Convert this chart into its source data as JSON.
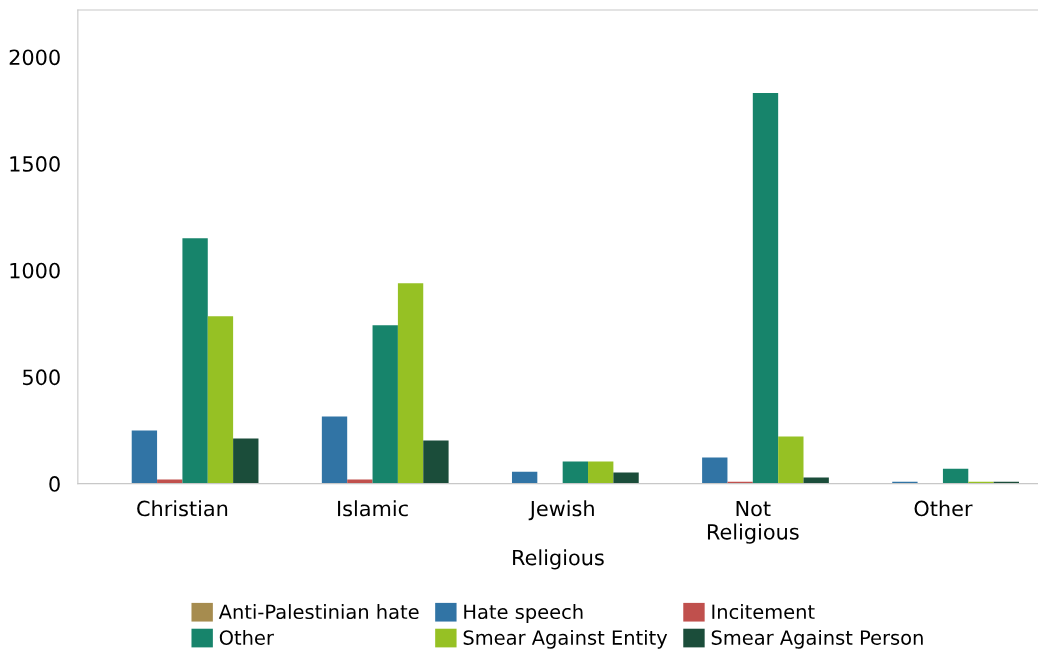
{
  "chart_data": {
    "type": "bar",
    "xlabel": "Religious",
    "categories": [
      "Christian",
      "Islamic",
      "Jewish",
      "Not\nReligious",
      "Other"
    ],
    "series": [
      {
        "name": "Anti-Palestinian hate",
        "color": "#a68c4f",
        "values": [
          0,
          0,
          0,
          0,
          0
        ]
      },
      {
        "name": "Hate speech",
        "color": "#3174a5",
        "values": [
          249,
          315,
          56,
          122,
          9
        ]
      },
      {
        "name": "Incitement",
        "color": "#c0504d",
        "values": [
          19,
          19,
          0,
          9,
          0
        ]
      },
      {
        "name": "Other",
        "color": "#17846b",
        "values": [
          1150,
          742,
          103,
          1831,
          70
        ]
      },
      {
        "name": "Smear Against Entity",
        "color": "#96c124",
        "values": [
          784,
          939,
          103,
          221,
          9
        ]
      },
      {
        "name": "Smear Against Person",
        "color": "#1b4d3a",
        "values": [
          211,
          202,
          52,
          28,
          9
        ]
      }
    ],
    "ylim": [
      0,
      2220
    ],
    "yticks": [
      0,
      500,
      1000,
      1500,
      2000
    ],
    "grid": false,
    "legend": "bottom"
  }
}
